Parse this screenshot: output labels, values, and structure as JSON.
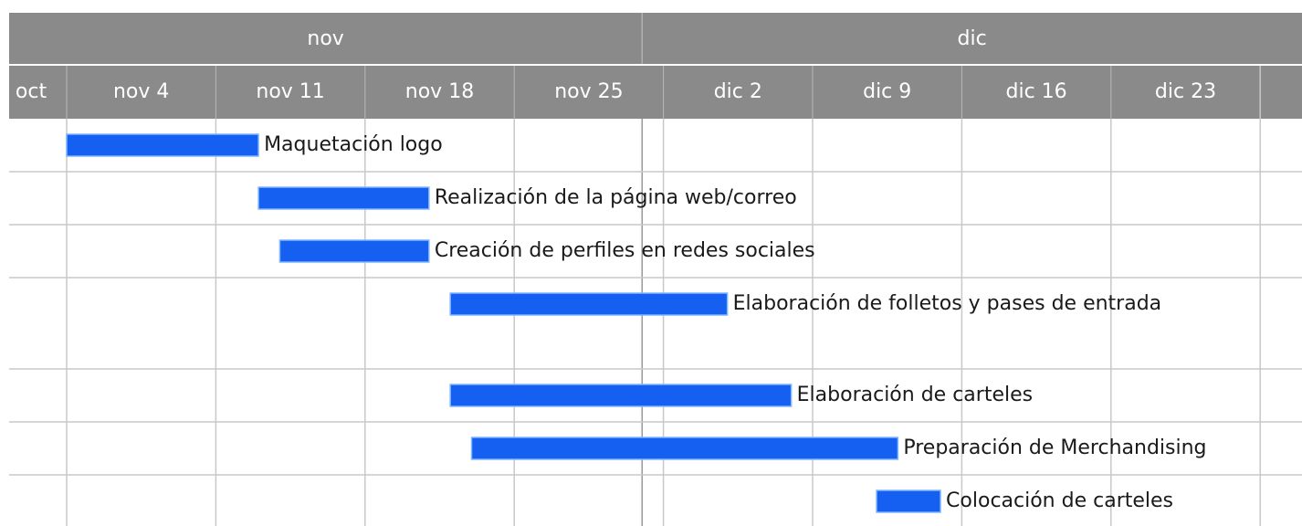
{
  "chart_data": {
    "type": "gantt",
    "months": [
      "nov",
      "dic"
    ],
    "xticks": [
      "oct",
      "nov 4",
      "nov 11",
      "nov 18",
      "nov 25",
      "dic 2",
      "dic 9",
      "dic 16",
      "dic 23"
    ],
    "color": "#1560f0",
    "grid": true,
    "tasks": [
      {
        "name": "Maquetación logo",
        "start": "nov 4",
        "end": "nov 13"
      },
      {
        "name": "Realización de la página web/correo",
        "start": "nov 13",
        "end": "nov 21"
      },
      {
        "name": "Creación de perfiles en redes sociales",
        "start": "nov 14",
        "end": "nov 21"
      },
      {
        "name": "Elaboración de folletos y pases de entrada",
        "start": "nov 22",
        "end": "dic 5"
      },
      {
        "name": "Elaboración de carteles",
        "start": "nov 22",
        "end": "dic 8"
      },
      {
        "name": "Preparación de Merchandising",
        "start": "nov 23",
        "end": "dic 13"
      },
      {
        "name": "Colocación de carteles",
        "start": "dic 12",
        "end": "dic 15"
      }
    ]
  }
}
